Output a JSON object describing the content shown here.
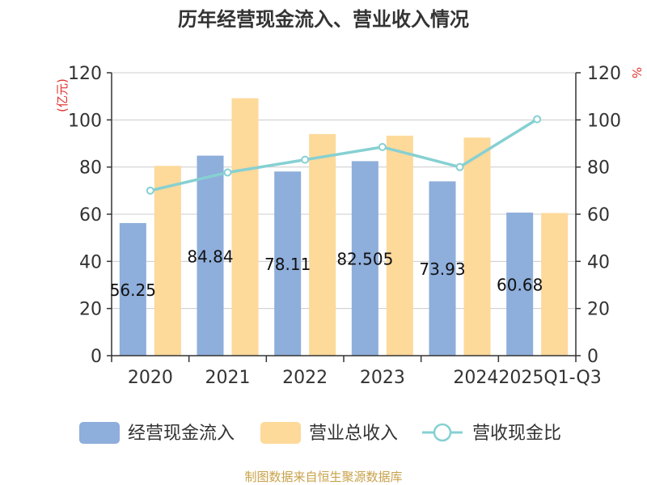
{
  "title": "历年经营现金流入、营业收入情况",
  "source": "制图数据来自恒生聚源数据库",
  "chart_data": {
    "type": "bar",
    "title": "历年经营现金流入、营业收入情况",
    "categories": [
      "2020",
      "2021",
      "2022",
      "2023",
      "2024",
      "2025Q1-Q3"
    ],
    "series": [
      {
        "name": "经营现金流入",
        "type": "bar",
        "axis": "left",
        "color": "#8eaedb",
        "values": [
          56.25,
          84.84,
          78.11,
          82.5,
          73.93,
          60.68
        ],
        "labels": [
          "56.25",
          "84.84",
          "78.11",
          "82.505",
          "73.93",
          "60.68"
        ]
      },
      {
        "name": "营业总收入",
        "type": "bar",
        "axis": "left",
        "color": "#fdd99a",
        "values": [
          80.5,
          109.2,
          94.0,
          93.3,
          92.5,
          60.5
        ]
      },
      {
        "name": "营收现金比",
        "type": "line",
        "axis": "right",
        "color": "#86d0d2",
        "values": [
          70,
          77.7,
          83.1,
          88.5,
          80,
          100.3
        ]
      }
    ],
    "y_left": {
      "label": "(亿元)",
      "min": 0,
      "max": 120,
      "ticks": [
        0,
        20,
        40,
        60,
        80,
        100,
        120
      ]
    },
    "y_right": {
      "label": "%",
      "min": 0,
      "max": 120,
      "ticks": [
        0,
        20,
        40,
        60,
        80,
        100,
        120
      ]
    },
    "grid": true,
    "legend": "bottom"
  }
}
